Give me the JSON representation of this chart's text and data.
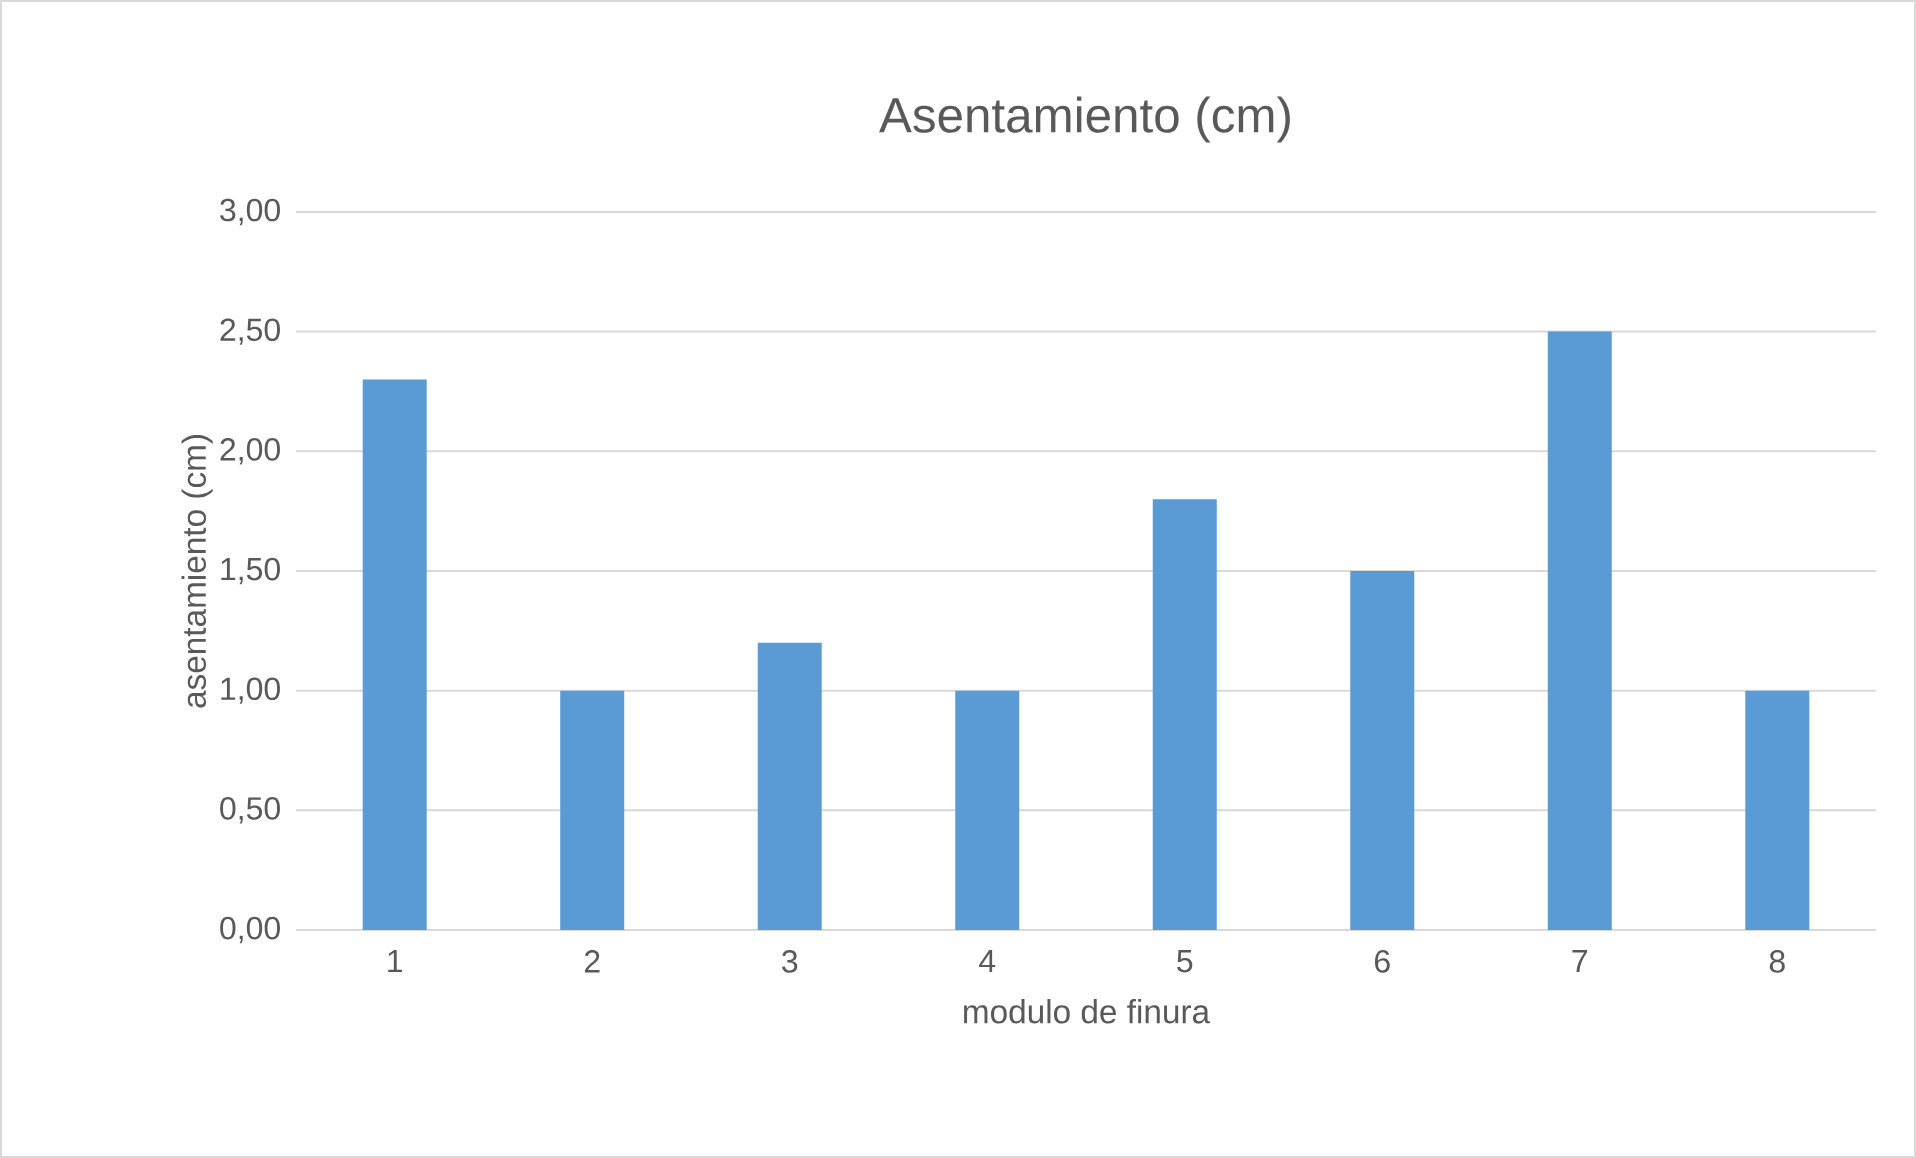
{
  "chart_data": {
    "type": "bar",
    "title": "Asentamiento (cm)",
    "xlabel": "modulo de finura",
    "ylabel": "asentamiento (cm)",
    "categories": [
      "1",
      "2",
      "3",
      "4",
      "5",
      "6",
      "7",
      "8"
    ],
    "values": [
      2.3,
      1.0,
      1.2,
      1.0,
      1.8,
      1.5,
      2.5,
      1.0
    ],
    "color": "#5b9bd5",
    "ylim": [
      0,
      3
    ],
    "yticks": [
      {
        "value": 0,
        "label": "0,00"
      },
      {
        "value": 0.5,
        "label": "0,50"
      },
      {
        "value": 1,
        "label": "1,00"
      },
      {
        "value": 1.5,
        "label": "1,50"
      },
      {
        "value": 2,
        "label": "2,00"
      },
      {
        "value": 2.5,
        "label": "2,50"
      },
      {
        "value": 3,
        "label": "3,00"
      }
    ],
    "grid": "y"
  }
}
